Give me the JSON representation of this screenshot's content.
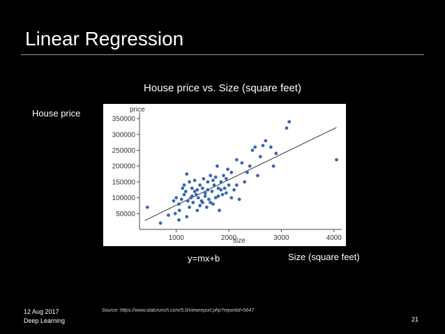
{
  "slide": {
    "title": "Linear Regression",
    "chart_heading": "House price vs. Size (square feet)",
    "side_label": "House price",
    "equation": "y=mx+b",
    "x_caption": "Size (square feet)",
    "footer_date": "12 Aug 2017",
    "footer_subtitle": "Deep Learning",
    "source": "Source: https://www.statcrunch.com/5.0/viewreport.php?reportid=5647",
    "page_number": "21"
  },
  "colors": {
    "background": "#000000",
    "point": "#3a66b5",
    "line": "#333333"
  },
  "chart_data": {
    "type": "scatter",
    "xlabel": "size",
    "ylabel": "price",
    "xlim": [
      300,
      4150
    ],
    "ylim": [
      0,
      370000
    ],
    "x_ticks": [
      1000,
      2000,
      3000,
      4000
    ],
    "x_tick_labels": [
      "1000",
      "2000",
      "3000",
      "4000"
    ],
    "y_ticks": [
      50000,
      100000,
      150000,
      200000,
      250000,
      300000,
      350000
    ],
    "y_tick_labels": [
      "50000",
      "100000",
      "150000",
      "200000",
      "250000",
      "300000",
      "350000"
    ],
    "grid": false,
    "regression_line": {
      "x1": 400,
      "y1": 28000,
      "x2": 4050,
      "y2": 322000
    },
    "points": [
      [
        450,
        70000
      ],
      [
        700,
        20000
      ],
      [
        850,
        45000
      ],
      [
        950,
        90000
      ],
      [
        980,
        50000
      ],
      [
        1050,
        30000
      ],
      [
        1060,
        60000
      ],
      [
        1000,
        100000
      ],
      [
        1050,
        80000
      ],
      [
        1100,
        95000
      ],
      [
        1120,
        130000
      ],
      [
        1150,
        110000
      ],
      [
        1180,
        120000
      ],
      [
        1200,
        175000
      ],
      [
        1220,
        90000
      ],
      [
        1250,
        150000
      ],
      [
        1280,
        100000
      ],
      [
        1300,
        130000
      ],
      [
        1320,
        85000
      ],
      [
        1350,
        120000
      ],
      [
        1380,
        110000
      ],
      [
        1400,
        60000
      ],
      [
        1420,
        100000
      ],
      [
        1450,
        140000
      ],
      [
        1480,
        90000
      ],
      [
        1500,
        130000
      ],
      [
        1520,
        160000
      ],
      [
        1550,
        115000
      ],
      [
        1580,
        70000
      ],
      [
        1600,
        150000
      ],
      [
        1620,
        95000
      ],
      [
        1650,
        170000
      ],
      [
        1680,
        120000
      ],
      [
        1700,
        80000
      ],
      [
        1720,
        140000
      ],
      [
        1750,
        100000
      ],
      [
        1780,
        200000
      ],
      [
        1800,
        130000
      ],
      [
        1820,
        60000
      ],
      [
        1850,
        150000
      ],
      [
        1880,
        110000
      ],
      [
        1900,
        170000
      ],
      [
        1920,
        130000
      ],
      [
        1950,
        160000
      ],
      [
        1980,
        190000
      ],
      [
        2000,
        140000
      ],
      [
        2050,
        100000
      ],
      [
        2100,
        125000
      ],
      [
        2150,
        220000
      ],
      [
        2200,
        95000
      ],
      [
        2250,
        210000
      ],
      [
        2300,
        150000
      ],
      [
        2350,
        180000
      ],
      [
        2400,
        200000
      ],
      [
        2450,
        250000
      ],
      [
        2500,
        260000
      ],
      [
        2550,
        170000
      ],
      [
        2600,
        230000
      ],
      [
        2650,
        265000
      ],
      [
        2700,
        280000
      ],
      [
        2800,
        260000
      ],
      [
        2850,
        200000
      ],
      [
        2900,
        240000
      ],
      [
        3100,
        320000
      ],
      [
        3150,
        340000
      ],
      [
        4050,
        220000
      ],
      [
        1150,
        140000
      ],
      [
        1250,
        70000
      ],
      [
        1350,
        155000
      ],
      [
        1450,
        75000
      ],
      [
        1550,
        105000
      ],
      [
        1650,
        85000
      ],
      [
        1750,
        165000
      ],
      [
        1850,
        125000
      ],
      [
        1950,
        115000
      ],
      [
        2050,
        180000
      ],
      [
        2150,
        140000
      ],
      [
        1200,
        40000
      ],
      [
        1300,
        105000
      ],
      [
        1400,
        125000
      ],
      [
        1500,
        85000
      ],
      [
        1600,
        125000
      ],
      [
        1700,
        155000
      ],
      [
        1800,
        105000
      ]
    ]
  }
}
